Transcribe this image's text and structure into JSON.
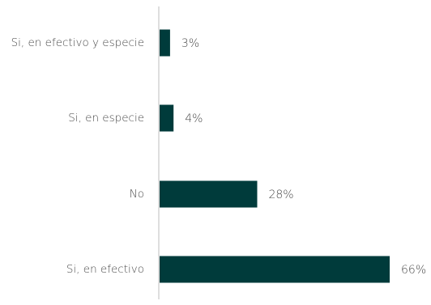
{
  "chart_data": {
    "type": "bar",
    "orientation": "horizontal",
    "categories": [
      "Si, en efectivo y especie",
      "Si, en especie",
      "No",
      "Si, en efectivo"
    ],
    "values": [
      3,
      4,
      28,
      66
    ],
    "value_labels": [
      "3%",
      "4%",
      "28%",
      "66%"
    ],
    "unit": "%",
    "title": "",
    "xlabel": "",
    "ylabel": "",
    "xlim": [
      0,
      66
    ],
    "grid": false,
    "legend": "none",
    "colors": {
      "bar": "#003b3b",
      "axis": "#bdbdbd",
      "text": "#4a4a4a"
    }
  }
}
